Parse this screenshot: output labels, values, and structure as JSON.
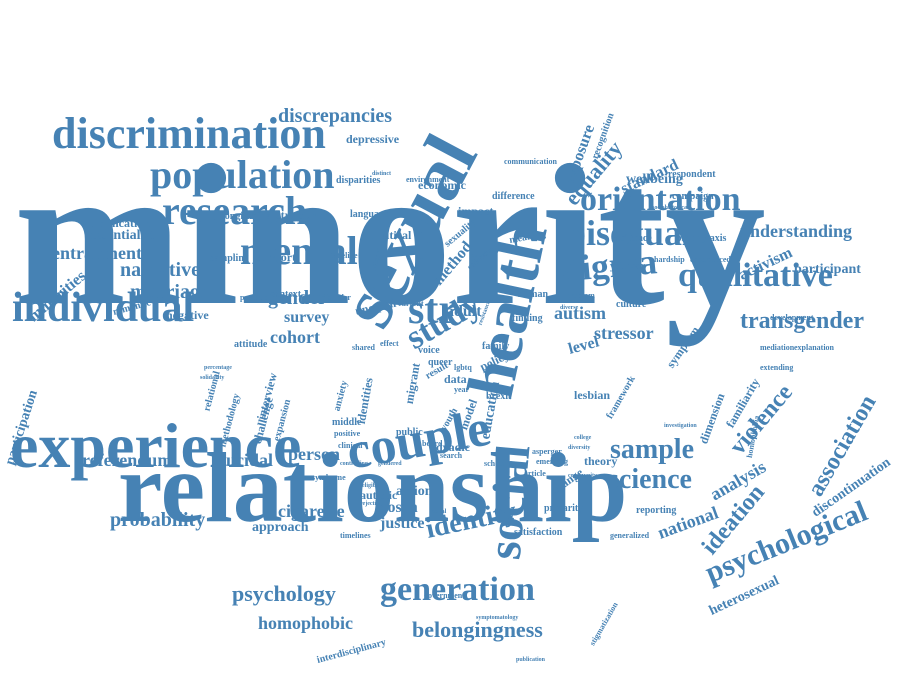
{
  "palette": {
    "primary": "#4682b4",
    "dark": "#2f6a9c"
  },
  "words": {
    "minority": "minority",
    "relationship": "relationship",
    "experience": "experience",
    "sexual": "sexual",
    "health": "health",
    "couple": "couple",
    "social": "social",
    "individual": "individual",
    "discrimination": "discrimination",
    "research": "research",
    "population": "population",
    "mental": "mental",
    "stigma": "stigma",
    "bisexual": "bisexual",
    "orientation": "orientation",
    "qualitative": "qualitative",
    "transgender": "transgender",
    "generation": "generation",
    "psychological": "psychological",
    "identity": "identity",
    "science": "science",
    "sample": "sample",
    "study": "study",
    "str": "str",
    "association": "association",
    "violence": "violence",
    "ideation": "ideation",
    "belongingness": "belongingness",
    "probability": "probability",
    "psychology": "psychology",
    "homophobic": "homophobic",
    "referendum": "referendum",
    "suicidal": "suicidal",
    "cigarette": "cigarette",
    "approach": "approach",
    "discrepancies": "discrepancies",
    "depressive": "depressive",
    "marriage": "marriage",
    "narrative": "narrative",
    "entrapment": "entrapment",
    "essentialist": "essentialist",
    "implication": "implication",
    "minorities": "minorities",
    "equality": "equality",
    "exposure": "exposure",
    "standard": "standard",
    "wellbeing": "wellbeing",
    "understanding": "understanding",
    "activism": "activism",
    "participant": "participant",
    "stressor": "stressor",
    "autism": "autism",
    "analysis": "analysis",
    "national": "national",
    "heterosexual": "heterosexual",
    "discontinuation": "discontinuation",
    "gender": "gender",
    "cohort": "cohort",
    "survey": "survey",
    "person": "person",
    "education": "education",
    "method": "method",
    "adult": "adult",
    "level": "level",
    "justice": "justice",
    "closen": "closen",
    "action": "action",
    "autistic": "autistic",
    "participation": "participation",
    "dyadic": "dyadic",
    "lesbian": "lesbian",
    "framework": "framework",
    "symptom": "symptom",
    "familiarity": "familiarity",
    "dimension": "dimension",
    "younger": "younger",
    "culture": "culture",
    "development": "development",
    "mediation": "mediation",
    "explanation": "explanation",
    "resilience": "resilience",
    "prophylaxis": "prophylaxis",
    "respondent": "respondent",
    "campaign": "campaign",
    "recognition": "recognition",
    "communication": "communication",
    "economic": "economic",
    "environment": "environment",
    "difference": "difference",
    "political": "political",
    "language": "language",
    "structural": "structural",
    "longitudinal": "longitudinal",
    "disparities": "disparities",
    "sampling": "sampling",
    "support": "support",
    "timeline": "timeline",
    "context": "context",
    "potential": "potential",
    "disorder": "disorder",
    "negative": "negative",
    "romantic": "romantic",
    "attitude": "attitude",
    "shared": "shared",
    "unequal": "unequal",
    "voice": "voice",
    "queer": "queer",
    "result": "result",
    "youth": "youth",
    "data": "data",
    "lgbtq": "lgbtq",
    "policy": "policy",
    "family": "family",
    "finding": "finding",
    "human": "human",
    "impact": "impact",
    "meaning": "meaning",
    "collective": "collective",
    "sexuality": "sexuality",
    "relational": "relational",
    "methodology": "methodology",
    "interview": "interview",
    "challenge": "challenge",
    "expansion": "expansion",
    "middle": "middle",
    "positive": "positive",
    "clinical": "clinical",
    "public": "public",
    "identities": "identities",
    "anxiety": "anxiety",
    "migrant": "migrant",
    "model": "model",
    "brexit": "brexit",
    "school": "school",
    "search": "search",
    "theory": "theory",
    "change": "change",
    "precarity": "precarity",
    "satisfaction": "satisfaction",
    "generalized": "generalized",
    "reporting": "reporting",
    "timelines": "timelines",
    "government": "government",
    "interdisciplinary": "interdisciplinary",
    "stigmatization": "stigmatization",
    "emerging": "emerging",
    "asperger": "asperger",
    "homophobia": "homophobia",
    "investigation": "investigation",
    "extending": "extending",
    "hardship": "hardship",
    "experienced": "experienced",
    "sociohistorical": "sociohistorical",
    "board": "board",
    "article": "article",
    "syndrome": "syndrome",
    "eligible": "eligible",
    "rejection": "rejection",
    "current": "current",
    "effect": "effect",
    "distinct": "distinct",
    "problem": "problem",
    "diverse": "diverse",
    "year": "year",
    "controlling": "controlling",
    "gendered": "gendered",
    "social_small": "social",
    "solidarity": "solidarity",
    "percentage": "percentage",
    "college": "college",
    "diversity": "diversity",
    "community": "community",
    "symptomatology": "symptomatology",
    "publication": "publication",
    "significant": "significant",
    "resistance": "resistance",
    "matter": "matter"
  }
}
